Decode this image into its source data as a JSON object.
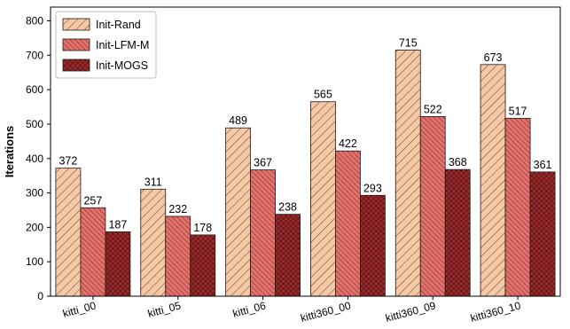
{
  "chart_data": {
    "type": "bar",
    "title": "",
    "xlabel": "",
    "ylabel": "Iterations",
    "ylim": [
      0,
      840
    ],
    "yticks": [
      0,
      100,
      200,
      300,
      400,
      500,
      600,
      700,
      800
    ],
    "grid": false,
    "legend_position": "top-left",
    "categories": [
      "kitti_00",
      "kitti_05",
      "kitti_06",
      "kitti360_00",
      "kitti360_09",
      "kitti360_10"
    ],
    "series": [
      {
        "name": "Init-Rand",
        "values": [
          372,
          311,
          489,
          565,
          715,
          673
        ],
        "color": "#f6c9a6",
        "hatch": "diagonal"
      },
      {
        "name": "Init-LFM-M",
        "values": [
          257,
          232,
          367,
          422,
          522,
          517
        ],
        "color": "#e4716a",
        "hatch": "diagonal-dense"
      },
      {
        "name": "Init-MOGS",
        "values": [
          187,
          178,
          238,
          293,
          368,
          361
        ],
        "color": "#9c2a2a",
        "hatch": "cross"
      }
    ]
  }
}
